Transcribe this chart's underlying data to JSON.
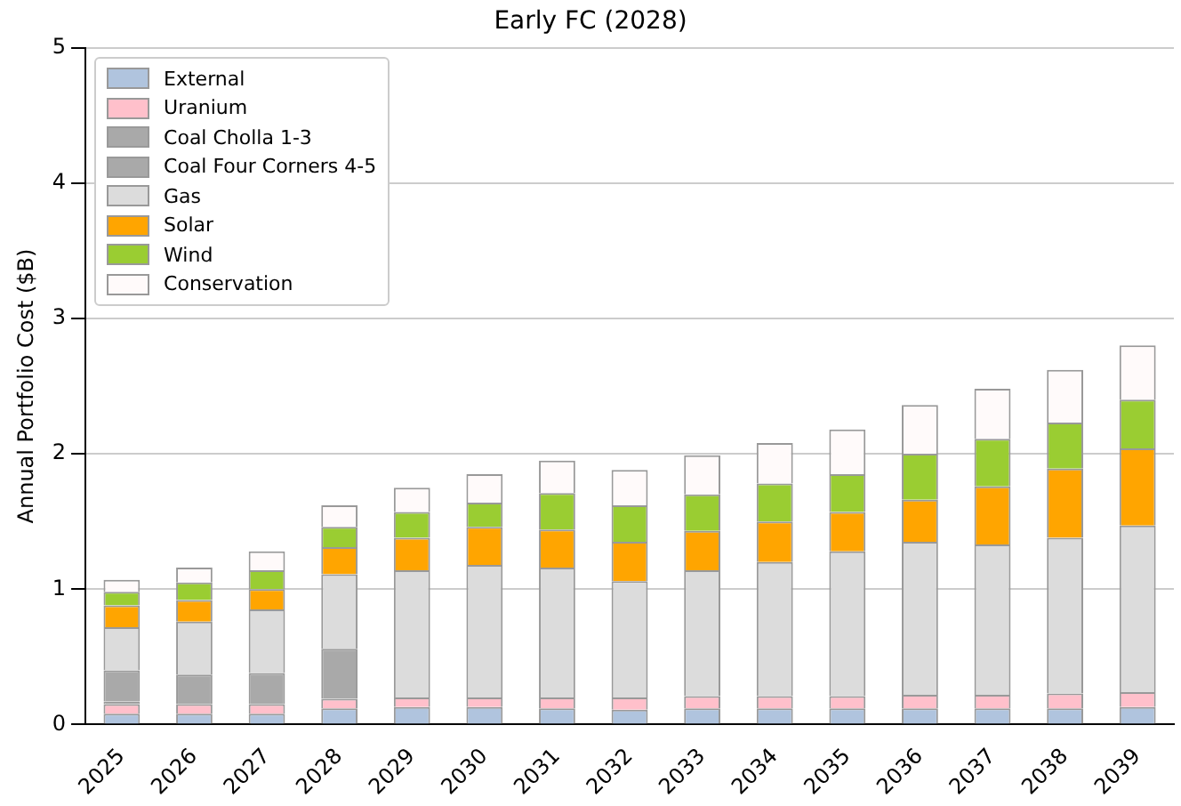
{
  "chart_data": {
    "type": "bar",
    "title": "Early FC (2028)",
    "ylabel": "Annual Portfolio Cost ($B)",
    "stacked": true,
    "grid": "y",
    "legend": "top left",
    "categories": [
      "2025",
      "2026",
      "2027",
      "2028",
      "2029",
      "2030",
      "2031",
      "2032",
      "2033",
      "2034",
      "2035",
      "2036",
      "2037",
      "2038",
      "2039"
    ],
    "ylim": [
      0,
      5
    ],
    "yticks": [
      0,
      1,
      2,
      3,
      4,
      5
    ],
    "series": [
      {
        "name": "External",
        "color": "#b0c4de",
        "values": [
          0.08,
          0.08,
          0.08,
          0.12,
          0.13,
          0.13,
          0.12,
          0.11,
          0.12,
          0.12,
          0.12,
          0.12,
          0.12,
          0.12,
          0.13
        ]
      },
      {
        "name": "Uranium",
        "color": "#ffc0cb",
        "values": [
          0.07,
          0.07,
          0.07,
          0.07,
          0.07,
          0.07,
          0.08,
          0.09,
          0.09,
          0.09,
          0.09,
          0.1,
          0.1,
          0.11,
          0.11
        ]
      },
      {
        "name": "Coal Cholla 1-3",
        "color": "#a9a9a9",
        "values": [
          0.02,
          0,
          0,
          0,
          0,
          0,
          0,
          0,
          0,
          0,
          0,
          0,
          0,
          0,
          0
        ]
      },
      {
        "name": "Coal Four Corners 4-5",
        "color": "#a9a9a9",
        "values": [
          0.23,
          0.22,
          0.23,
          0.37,
          0,
          0,
          0,
          0,
          0,
          0,
          0,
          0,
          0,
          0,
          0
        ]
      },
      {
        "name": "Gas",
        "color": "#dcdcdc",
        "values": [
          0.32,
          0.39,
          0.47,
          0.55,
          0.94,
          0.98,
          0.96,
          0.86,
          0.93,
          0.99,
          1.07,
          1.13,
          1.11,
          1.15,
          1.23
        ]
      },
      {
        "name": "Solar",
        "color": "#ffa500",
        "values": [
          0.16,
          0.16,
          0.15,
          0.2,
          0.24,
          0.28,
          0.28,
          0.29,
          0.29,
          0.3,
          0.29,
          0.31,
          0.43,
          0.51,
          0.57
        ]
      },
      {
        "name": "Wind",
        "color": "#9acd32",
        "values": [
          0.1,
          0.13,
          0.14,
          0.15,
          0.19,
          0.18,
          0.27,
          0.27,
          0.27,
          0.28,
          0.28,
          0.34,
          0.35,
          0.34,
          0.36
        ]
      },
      {
        "name": "Conservation",
        "color": "#fffafa",
        "values": [
          0.09,
          0.11,
          0.14,
          0.16,
          0.18,
          0.21,
          0.24,
          0.26,
          0.29,
          0.3,
          0.33,
          0.36,
          0.37,
          0.39,
          0.4
        ]
      }
    ]
  }
}
